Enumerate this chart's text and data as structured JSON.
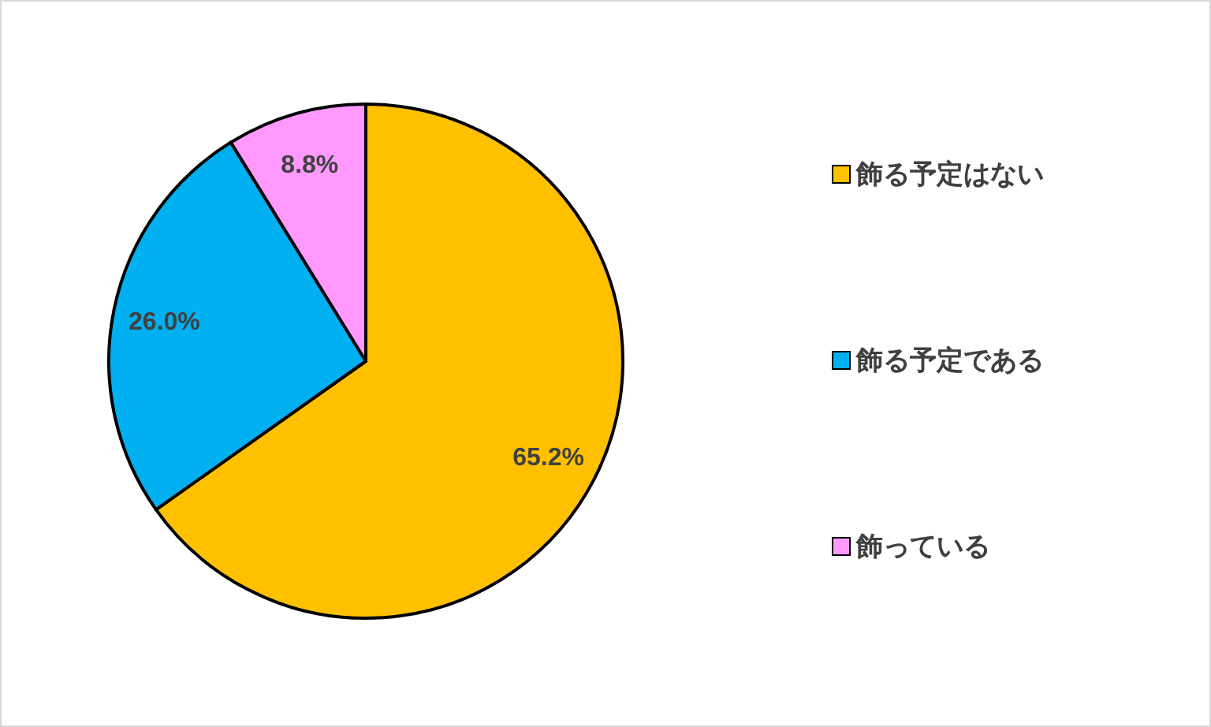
{
  "chart_data": {
    "type": "pie",
    "categories": [
      "飾る予定はない",
      "飾る予定である",
      "飾っている"
    ],
    "values": [
      65.2,
      26.0,
      8.8
    ],
    "colors": [
      "#ffc000",
      "#00b0f0",
      "#ff99ff"
    ],
    "value_labels": [
      "65.2%",
      "26.0%",
      "8.8%"
    ],
    "legend": "right"
  }
}
